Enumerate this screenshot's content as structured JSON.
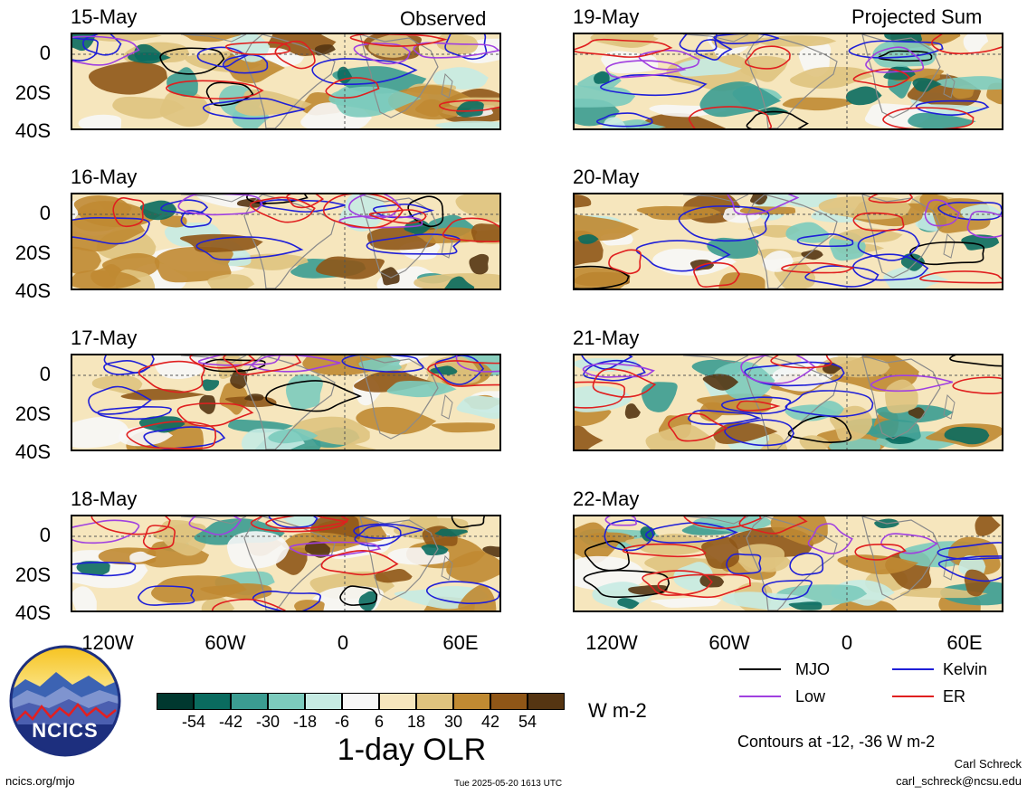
{
  "panels": {
    "observed": [
      {
        "date": "15-May"
      },
      {
        "date": "16-May"
      },
      {
        "date": "17-May"
      },
      {
        "date": "18-May"
      }
    ],
    "projected": [
      {
        "date": "19-May"
      },
      {
        "date": "20-May"
      },
      {
        "date": "21-May"
      },
      {
        "date": "22-May"
      }
    ],
    "observed_header": "Observed",
    "projected_header": "Projected Sum"
  },
  "axes": {
    "lat_ticks": [
      "0",
      "20S",
      "40S"
    ],
    "lon_ticks": [
      "120W",
      "60W",
      "0",
      "60E"
    ]
  },
  "colorbar": {
    "ticks": [
      "-54",
      "-42",
      "-30",
      "-18",
      "-6",
      "6",
      "18",
      "30",
      "42",
      "54"
    ],
    "colors": [
      "#00382f",
      "#0a6b5f",
      "#3b9c91",
      "#7ccbbd",
      "#c6ebe3",
      "#f7f7f7",
      "#f6e6bd",
      "#dfc37e",
      "#c08a32",
      "#8f5617",
      "#553512"
    ],
    "units": "W m-2",
    "title": "1-day OLR"
  },
  "legend": {
    "items": [
      {
        "label": "MJO",
        "color": "#000000"
      },
      {
        "label": "Kelvin",
        "color": "#1f1fd8"
      },
      {
        "label": "Low",
        "color": "#a040e0"
      },
      {
        "label": "ER",
        "color": "#e01f1f"
      }
    ],
    "contour_note": "Contours at -12, -36 W m-2"
  },
  "footer": {
    "site": "ncics.org/mjo",
    "timestamp": "Tue 2025-05-20 1613 UTC",
    "author": "Carl Schreck",
    "email": "carl_schreck@ncsu.edu"
  },
  "logo": {
    "text": "NCICS"
  }
}
